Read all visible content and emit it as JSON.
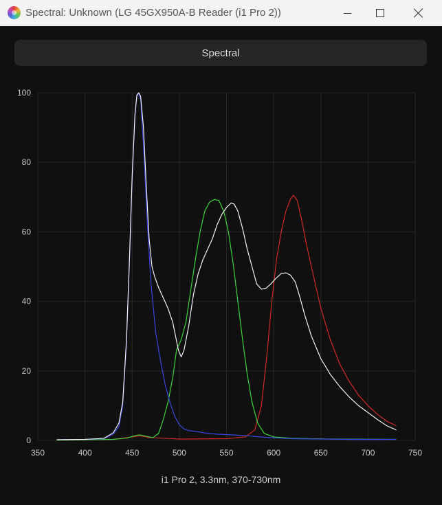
{
  "window": {
    "title": "Spectral: Unknown (LG 45GX950A-B Reader (i1 Pro 2))",
    "tab_label": "Spectral"
  },
  "caption": "i1 Pro 2, 3.3nm, 370-730nm",
  "chart_data": {
    "type": "line",
    "title": "",
    "xlabel": "",
    "ylabel": "",
    "xlim": [
      350,
      750
    ],
    "ylim": [
      0,
      100
    ],
    "x_ticks": [
      350,
      400,
      450,
      500,
      550,
      600,
      650,
      700,
      750
    ],
    "y_ticks": [
      0,
      20,
      40,
      60,
      80,
      100
    ],
    "grid": true,
    "series": [
      {
        "color": "#d42a2a",
        "points": [
          [
            370,
            0.1
          ],
          [
            430,
            0.3
          ],
          [
            450,
            1.0
          ],
          [
            458,
            1.3
          ],
          [
            470,
            0.8
          ],
          [
            500,
            0.4
          ],
          [
            550,
            0.5
          ],
          [
            570,
            1.0
          ],
          [
            580,
            3
          ],
          [
            587,
            10
          ],
          [
            593,
            25
          ],
          [
            598,
            40
          ],
          [
            603,
            52
          ],
          [
            608,
            60
          ],
          [
            613,
            66
          ],
          [
            618,
            69.5
          ],
          [
            621,
            70.5
          ],
          [
            625,
            69
          ],
          [
            630,
            63
          ],
          [
            635,
            56
          ],
          [
            640,
            50
          ],
          [
            645,
            44
          ],
          [
            650,
            38
          ],
          [
            660,
            29
          ],
          [
            670,
            22
          ],
          [
            680,
            17
          ],
          [
            690,
            13
          ],
          [
            700,
            10
          ],
          [
            710,
            7.5
          ],
          [
            720,
            5.5
          ],
          [
            730,
            4.2
          ]
        ]
      },
      {
        "color": "#3ad53a",
        "points": [
          [
            370,
            0.1
          ],
          [
            430,
            0.3
          ],
          [
            445,
            0.7
          ],
          [
            452,
            1.3
          ],
          [
            458,
            1.6
          ],
          [
            465,
            1.2
          ],
          [
            472,
            0.8
          ],
          [
            478,
            2
          ],
          [
            483,
            6
          ],
          [
            488,
            11
          ],
          [
            493,
            18
          ],
          [
            497,
            26
          ],
          [
            502,
            29
          ],
          [
            507,
            34
          ],
          [
            512,
            43
          ],
          [
            517,
            52
          ],
          [
            522,
            60
          ],
          [
            527,
            66
          ],
          [
            532,
            68.5
          ],
          [
            537,
            69.3
          ],
          [
            542,
            69
          ],
          [
            547,
            66
          ],
          [
            552,
            60
          ],
          [
            557,
            51
          ],
          [
            562,
            40
          ],
          [
            567,
            29
          ],
          [
            572,
            19
          ],
          [
            577,
            11
          ],
          [
            583,
            5
          ],
          [
            590,
            2
          ],
          [
            600,
            1.0
          ],
          [
            620,
            0.6
          ],
          [
            660,
            0.4
          ],
          [
            730,
            0.3
          ]
        ]
      },
      {
        "color": "#3a46e0",
        "points": [
          [
            370,
            0.2
          ],
          [
            400,
            0.3
          ],
          [
            420,
            0.5
          ],
          [
            430,
            1.8
          ],
          [
            436,
            4
          ],
          [
            440,
            10
          ],
          [
            444,
            28
          ],
          [
            447,
            50
          ],
          [
            450,
            75
          ],
          [
            453,
            93
          ],
          [
            455,
            99
          ],
          [
            457,
            99.8
          ],
          [
            459,
            98
          ],
          [
            462,
            85
          ],
          [
            466,
            63
          ],
          [
            470,
            45
          ],
          [
            475,
            31
          ],
          [
            480,
            23
          ],
          [
            485,
            16
          ],
          [
            490,
            11
          ],
          [
            495,
            7
          ],
          [
            500,
            4.5
          ],
          [
            505,
            3.3
          ],
          [
            510,
            2.8
          ],
          [
            520,
            2.5
          ],
          [
            530,
            2.0
          ],
          [
            540,
            1.8
          ],
          [
            555,
            1.6
          ],
          [
            570,
            1.4
          ],
          [
            590,
            0.9
          ],
          [
            620,
            0.5
          ],
          [
            680,
            0.3
          ],
          [
            730,
            0.3
          ]
        ]
      },
      {
        "color": "#f2f2f2",
        "points": [
          [
            370,
            0.2
          ],
          [
            400,
            0.3
          ],
          [
            420,
            0.6
          ],
          [
            430,
            2.2
          ],
          [
            436,
            5
          ],
          [
            440,
            11
          ],
          [
            444,
            29
          ],
          [
            447,
            51
          ],
          [
            450,
            76
          ],
          [
            453,
            94
          ],
          [
            455,
            99.3
          ],
          [
            457,
            100
          ],
          [
            459,
            99
          ],
          [
            462,
            90
          ],
          [
            465,
            73
          ],
          [
            468,
            58
          ],
          [
            471,
            50
          ],
          [
            474,
            47
          ],
          [
            478,
            44
          ],
          [
            483,
            41
          ],
          [
            488,
            38
          ],
          [
            493,
            34
          ],
          [
            496,
            30
          ],
          [
            499,
            26
          ],
          [
            502,
            24
          ],
          [
            505,
            26
          ],
          [
            510,
            33
          ],
          [
            515,
            42
          ],
          [
            520,
            48
          ],
          [
            525,
            52
          ],
          [
            530,
            55
          ],
          [
            535,
            58
          ],
          [
            540,
            62
          ],
          [
            545,
            65
          ],
          [
            550,
            67
          ],
          [
            555,
            68.3
          ],
          [
            558,
            68
          ],
          [
            562,
            66
          ],
          [
            567,
            61
          ],
          [
            572,
            55
          ],
          [
            577,
            50
          ],
          [
            582,
            45
          ],
          [
            587,
            43.5
          ],
          [
            592,
            43.8
          ],
          [
            597,
            45
          ],
          [
            602,
            46.5
          ],
          [
            608,
            48
          ],
          [
            613,
            48.2
          ],
          [
            618,
            47.5
          ],
          [
            623,
            45.5
          ],
          [
            628,
            41
          ],
          [
            633,
            36
          ],
          [
            640,
            30
          ],
          [
            650,
            23.5
          ],
          [
            660,
            19
          ],
          [
            670,
            15.5
          ],
          [
            680,
            12.5
          ],
          [
            690,
            10
          ],
          [
            700,
            8
          ],
          [
            710,
            6
          ],
          [
            720,
            4.2
          ],
          [
            730,
            3.0
          ]
        ]
      }
    ]
  }
}
